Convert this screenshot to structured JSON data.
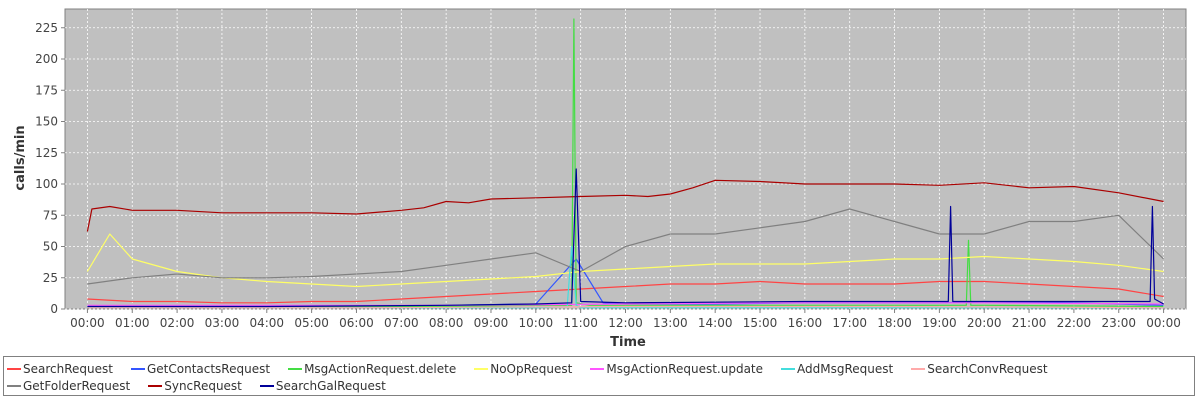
{
  "chart_data": {
    "type": "line",
    "title": "",
    "xlabel": "Time",
    "ylabel": "calls/min",
    "ylim": [
      0,
      240
    ],
    "y_ticks": [
      0,
      25,
      50,
      75,
      100,
      125,
      150,
      175,
      200,
      225
    ],
    "x_ticks": [
      "00:00",
      "01:00",
      "02:00",
      "03:00",
      "04:00",
      "05:00",
      "06:00",
      "07:00",
      "08:00",
      "09:00",
      "10:00",
      "11:00",
      "12:00",
      "13:00",
      "14:00",
      "15:00",
      "16:00",
      "17:00",
      "18:00",
      "19:00",
      "20:00",
      "21:00",
      "22:00",
      "23:00",
      "00:00"
    ],
    "xlim_hours": [
      -0.5,
      24.5
    ],
    "grid": true,
    "legend_position": "bottom",
    "background_color": "#c0c0c0",
    "series": [
      {
        "name": "SearchRequest",
        "color": "#ff4444",
        "hours": [
          0,
          1,
          2,
          3,
          4,
          5,
          6,
          7,
          8,
          9,
          10,
          11,
          12,
          13,
          14,
          15,
          16,
          17,
          18,
          19,
          20,
          21,
          22,
          23,
          24
        ],
        "values": [
          8,
          6,
          6,
          5,
          5,
          6,
          6,
          8,
          10,
          12,
          14,
          16,
          18,
          20,
          20,
          22,
          20,
          20,
          20,
          22,
          22,
          20,
          18,
          16,
          10
        ]
      },
      {
        "name": "GetContactsRequest",
        "color": "#3355ff",
        "hours": [
          0,
          2,
          4,
          6,
          8,
          10,
          10.9,
          11.5,
          12,
          14,
          16,
          18,
          19,
          20,
          22,
          24
        ],
        "values": [
          2,
          2,
          2,
          2,
          3,
          4,
          40,
          5,
          4,
          4,
          5,
          5,
          5,
          6,
          5,
          3
        ]
      },
      {
        "name": "MsgActionRequest.delete",
        "color": "#44dd44",
        "hours": [
          0,
          4,
          8,
          10,
          10.5,
          10.8,
          10.85,
          10.9,
          11.2,
          12,
          16,
          19.6,
          19.65,
          19.7,
          20,
          24
        ],
        "values": [
          2,
          2,
          2,
          3,
          3,
          3,
          232,
          5,
          3,
          3,
          3,
          3,
          55,
          3,
          3,
          2
        ]
      },
      {
        "name": "NoOpRequest",
        "color": "#ffff66",
        "hours": [
          0,
          0.5,
          1,
          2,
          3,
          4,
          5,
          6,
          7,
          8,
          9,
          10,
          11,
          12,
          13,
          14,
          15,
          16,
          17,
          18,
          19,
          20,
          21,
          22,
          23,
          24
        ],
        "values": [
          30,
          60,
          40,
          30,
          25,
          22,
          20,
          18,
          20,
          22,
          24,
          26,
          30,
          32,
          34,
          36,
          36,
          36,
          38,
          40,
          40,
          42,
          40,
          38,
          35,
          30
        ]
      },
      {
        "name": "MsgActionRequest.update",
        "color": "#ff55ff",
        "hours": [
          0,
          4,
          8,
          12,
          16,
          20,
          24
        ],
        "values": [
          3,
          3,
          3,
          4,
          5,
          5,
          4
        ]
      },
      {
        "name": "AddMsgRequest",
        "color": "#44dddd",
        "hours": [
          0,
          6,
          10,
          10.7,
          10.8,
          10.9,
          11,
          12,
          18,
          24
        ],
        "values": [
          1,
          1,
          1,
          2,
          50,
          3,
          1,
          1,
          1,
          1
        ]
      },
      {
        "name": "SearchConvRequest",
        "color": "#ffaaaa",
        "hours": [
          0,
          6,
          12,
          18,
          24
        ],
        "values": [
          1,
          1,
          2,
          2,
          1
        ]
      },
      {
        "name": "GetFolderRequest",
        "color": "#808080",
        "hours": [
          0,
          1,
          2,
          3,
          4,
          5,
          6,
          7,
          8,
          9,
          10,
          11,
          12,
          13,
          14,
          15,
          16,
          17,
          18,
          19,
          20,
          21,
          22,
          23,
          24
        ],
        "values": [
          20,
          25,
          28,
          25,
          25,
          26,
          28,
          30,
          35,
          40,
          45,
          30,
          50,
          60,
          60,
          65,
          70,
          80,
          70,
          60,
          60,
          70,
          70,
          75,
          40
        ]
      },
      {
        "name": "SyncRequest",
        "color": "#aa0000",
        "hours": [
          0,
          0.1,
          0.5,
          1,
          2,
          3,
          4,
          5,
          6,
          7,
          7.5,
          8,
          8.5,
          9,
          10,
          11,
          12,
          12.5,
          13,
          13.5,
          14,
          15,
          16,
          17,
          18,
          19,
          20,
          21,
          22,
          23,
          24
        ],
        "values": [
          62,
          80,
          82,
          79,
          79,
          77,
          77,
          77,
          76,
          79,
          81,
          86,
          85,
          88,
          89,
          90,
          91,
          90,
          92,
          97,
          103,
          102,
          100,
          100,
          100,
          99,
          101,
          97,
          98,
          93,
          86
        ]
      },
      {
        "name": "SearchGalRequest",
        "color": "#000099",
        "hours": [
          0,
          4,
          8,
          10,
          10.8,
          10.9,
          11,
          12,
          16,
          19.2,
          19.25,
          19.3,
          20,
          23.7,
          23.75,
          23.8,
          24
        ],
        "values": [
          2,
          2,
          3,
          4,
          5,
          112,
          6,
          5,
          6,
          6,
          82,
          6,
          6,
          6,
          82,
          8,
          4
        ]
      }
    ]
  }
}
